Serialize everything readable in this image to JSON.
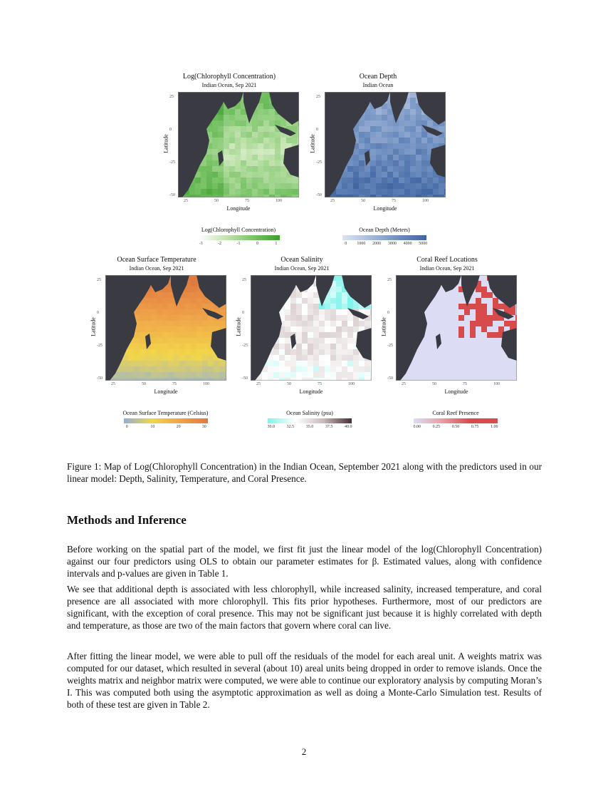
{
  "figure": {
    "maps": [
      {
        "id": "chlorophyll",
        "title": "Log(Chlorophyll Concentration)",
        "subtitle": "Indian Ocean, Sep 2021",
        "xlabel": "Longitude",
        "ylabel": "Latitude",
        "xticks": [
          "25",
          "50",
          "75",
          "100"
        ],
        "yticks": [
          "25",
          "0",
          "-25",
          "-50"
        ],
        "legend_title": "Log(Chlorophyll Concentration)",
        "legend_ticks": [
          "-3",
          "-2",
          "-1",
          "0",
          "1"
        ],
        "colors": [
          "#ffffff",
          "#c6e5b3",
          "#7cc56a",
          "#3d9e2e"
        ]
      },
      {
        "id": "depth",
        "title": "Ocean Depth",
        "subtitle": "Indian Ocean",
        "xlabel": "Longitude",
        "ylabel": "Latitude",
        "xticks": [
          "25",
          "50",
          "75",
          "100"
        ],
        "yticks": [
          "25",
          "0",
          "-25",
          "-50"
        ],
        "legend_title": "Ocean Depth (Meters)",
        "legend_ticks": [
          "0",
          "1000",
          "2000",
          "3000",
          "4000",
          "5000"
        ],
        "colors": [
          "#dbe4f2",
          "#a7badb",
          "#6f8fc0",
          "#3e64a0"
        ]
      },
      {
        "id": "temperature",
        "title": "Ocean Surface Temperature",
        "subtitle": "Indian Ocean, Sep 2021",
        "xlabel": "Longitude",
        "ylabel": "Latitude",
        "xticks": [
          "25",
          "50",
          "75",
          "100"
        ],
        "yticks": [
          "25",
          "0",
          "-25",
          "-50"
        ],
        "legend_title": "Ocean Surface Temperature (Celsius)",
        "legend_ticks": [
          "0",
          "10",
          "20",
          "30"
        ],
        "colors": [
          "#8fb0d8",
          "#f2d64a",
          "#f0a44a",
          "#e07a40"
        ]
      },
      {
        "id": "salinity",
        "title": "Ocean Salinity",
        "subtitle": "Indian Ocean, Sep 2021",
        "xlabel": "Longitude",
        "ylabel": "Latitude",
        "xticks": [
          "25",
          "50",
          "75",
          "100"
        ],
        "yticks": [
          "25",
          "0",
          "-25",
          "-50"
        ],
        "legend_title": "Ocean Salinity (psu)",
        "legend_ticks": [
          "30.0",
          "32.5",
          "35.0",
          "37.5",
          "40.0"
        ],
        "colors": [
          "#7ff3ea",
          "#ffffff",
          "#c9b9b9",
          "#4a2d34"
        ]
      },
      {
        "id": "coral",
        "title": "Coral Reef Locations",
        "subtitle": "Indian Ocean, Sep 2021",
        "xlabel": "Longitude",
        "ylabel": "Latitude",
        "xticks": [
          "25",
          "50",
          "75",
          "100"
        ],
        "yticks": [
          "25",
          "0",
          "-25",
          "-50"
        ],
        "legend_title": "Coral Reef Presence",
        "legend_ticks": [
          "0.00",
          "0.25",
          "0.50",
          "0.75",
          "1.00"
        ],
        "colors": [
          "#dcdcf5",
          "#e8a0a8",
          "#d84b4b",
          "#d84b4b"
        ]
      }
    ],
    "land_color": "#3a3a42",
    "caption": "Figure 1: Map of Log(Chlorophyll Concentration) in the Indian Ocean, September 2021 along with the predictors used in our linear model: Depth, Salinity, Temperature, and Coral Presence."
  },
  "section": {
    "heading": "Methods and Inference",
    "paragraphs": [
      "Before working on the spatial part of the model, we first fit just the linear model of the log(Chlorophyll Concentration) against our four predictors using OLS to obtain our parameter estimates for β. Estimated values, along with confidence intervals and p-values are given in Table 1.",
      "We see that additional depth is associated with less chlorophyll, while increased salinity, increased temperature, and coral presence are all associated with more chlorophyll. This fits prior hypotheses. Furthermore, most of our predictors are significant, with the exception of coral presence. This may not be significant just because it is highly correlated with depth and temperature, as those are two of the main factors that govern where coral can live.",
      "After fitting the linear model, we were able to pull off the residuals of the model for each areal unit. A weights matrix was computed for our dataset, which resulted in several (about 10) areal units being dropped in order to remove islands. Once the weights matrix and neighbor matrix were computed, we were able to continue our exploratory analysis by computing Moran’s I. This was computed both using the asymptotic approximation as well as doing a Monte-Carlo Simulation test. Results of both of these test are given in Table 2."
    ]
  },
  "page_number": "2"
}
